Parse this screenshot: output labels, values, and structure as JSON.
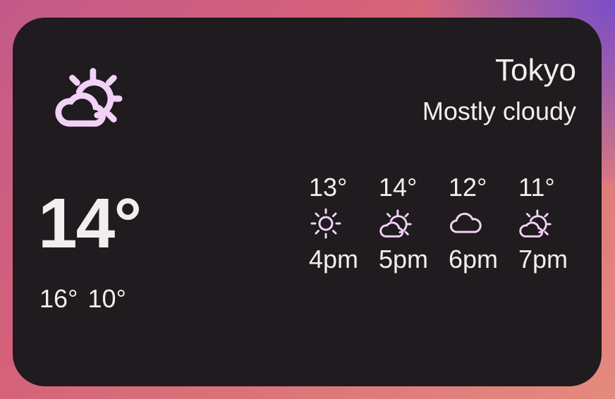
{
  "widget": {
    "city": "Tokyo",
    "condition": "Mostly cloudy",
    "condition_icon": "partly-cloudy-icon",
    "current_temp": "14°",
    "high": "16°",
    "low": "10°",
    "icon_color": "#f3d2f7",
    "forecast": [
      {
        "temp": "13°",
        "icon": "sun-icon",
        "time": "4pm"
      },
      {
        "temp": "14°",
        "icon": "partly-cloudy-icon",
        "time": "5pm"
      },
      {
        "temp": "12°",
        "icon": "cloud-icon",
        "time": "6pm"
      },
      {
        "temp": "11°",
        "icon": "partly-cloudy-icon",
        "time": "7pm"
      }
    ]
  }
}
